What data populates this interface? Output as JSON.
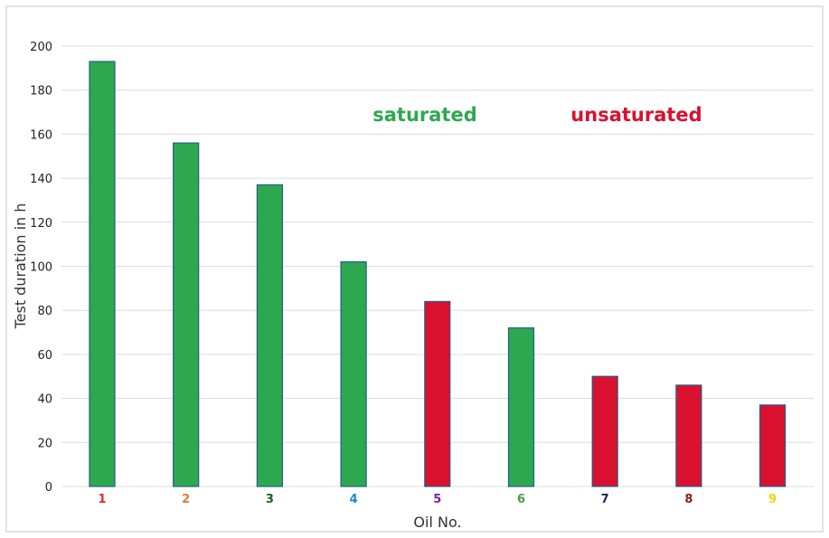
{
  "chart_data": {
    "type": "bar",
    "title": "",
    "xlabel": "Oil No.",
    "ylabel": "Test duration in h",
    "ylim": [
      0,
      200
    ],
    "yticks": [
      0,
      20,
      40,
      60,
      80,
      100,
      120,
      140,
      160,
      180,
      200
    ],
    "grid": true,
    "categories": [
      "1",
      "2",
      "3",
      "4",
      "5",
      "6",
      "7",
      "8",
      "9"
    ],
    "values": [
      193,
      156,
      137,
      102,
      84,
      72,
      50,
      46,
      37
    ],
    "bar_groups": [
      "saturated",
      "saturated",
      "saturated",
      "saturated",
      "unsaturated",
      "saturated",
      "unsaturated",
      "unsaturated",
      "unsaturated"
    ],
    "tick_label_colors": [
      "#d32f2f",
      "#e07b39",
      "#1b5e20",
      "#1e88c8",
      "#7b1fa2",
      "#43a047",
      "#1a2b4c",
      "#8b1a1a",
      "#f2d40c"
    ],
    "legend": [
      {
        "label": "saturated",
        "color": "#2ea84f"
      },
      {
        "label": "unsaturated",
        "color": "#d9112f"
      }
    ],
    "colors": {
      "saturated": "#2ea84f",
      "unsaturated": "#d9112f",
      "bar_edge": "#1f5f8b"
    }
  }
}
